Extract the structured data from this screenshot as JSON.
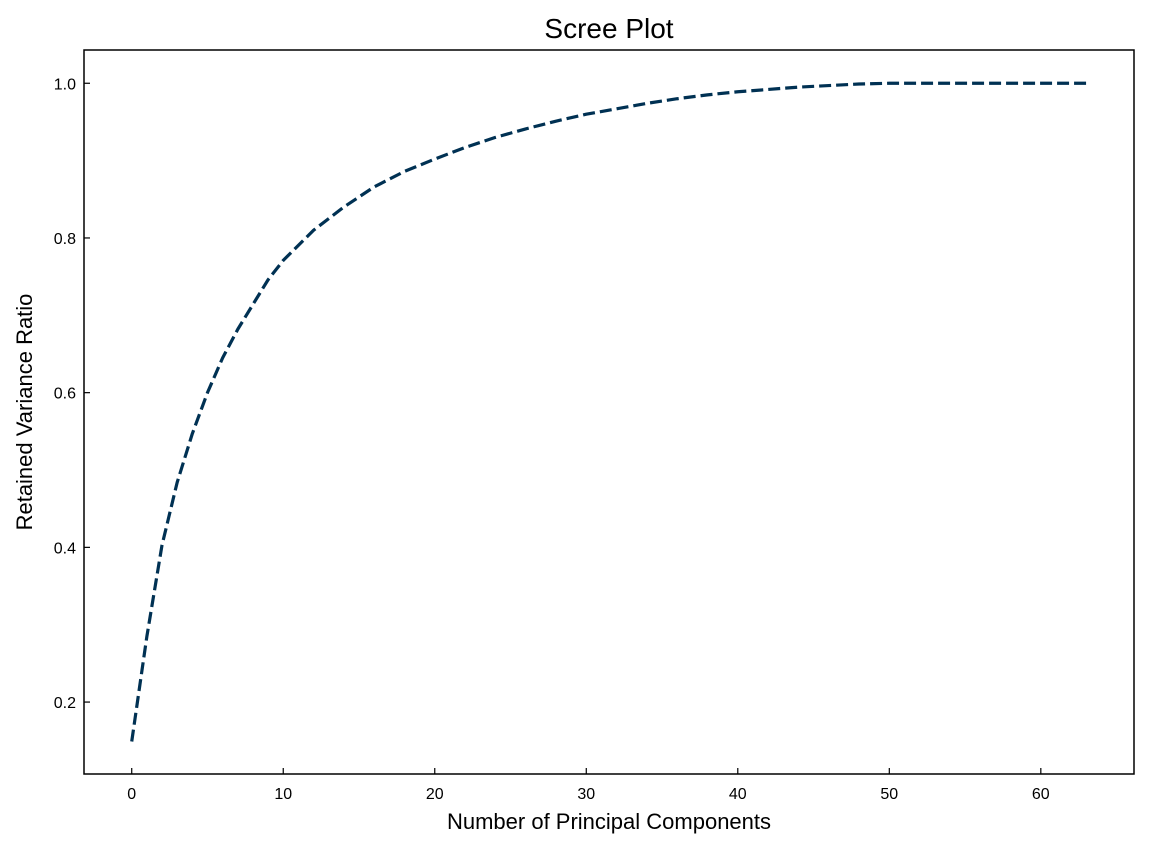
{
  "chart_data": {
    "type": "line",
    "title": "Scree Plot",
    "xlabel": "Number of Principal Components",
    "ylabel": "Retained Variance Ratio",
    "xlim": [
      -3.15,
      66.15
    ],
    "ylim": [
      0.107,
      1.043
    ],
    "xticks": [
      0,
      10,
      20,
      30,
      40,
      50,
      60
    ],
    "yticks": [
      0.2,
      0.4,
      0.6,
      0.8,
      1.0
    ],
    "ytick_labels": [
      "0.2",
      "0.4",
      "0.6",
      "0.8",
      "1.0"
    ],
    "grid": false,
    "line_style": "dashed",
    "line_color": "#003153",
    "series": [
      {
        "x": [
          0,
          1,
          2,
          3,
          4,
          5,
          6,
          7,
          8,
          9,
          10,
          12,
          14,
          16,
          18,
          20,
          22,
          24,
          26,
          28,
          30,
          32,
          34,
          36,
          38,
          40,
          42,
          44,
          46,
          48,
          50,
          52,
          54,
          56,
          58,
          60,
          63
        ],
        "values": [
          0.149,
          0.285,
          0.403,
          0.484,
          0.547,
          0.6,
          0.645,
          0.682,
          0.714,
          0.746,
          0.771,
          0.81,
          0.84,
          0.866,
          0.886,
          0.902,
          0.917,
          0.93,
          0.941,
          0.951,
          0.96,
          0.967,
          0.974,
          0.98,
          0.985,
          0.989,
          0.992,
          0.995,
          0.997,
          0.999,
          1.0,
          1.0,
          1.0,
          1.0,
          1.0,
          1.0,
          1.0
        ]
      }
    ]
  }
}
